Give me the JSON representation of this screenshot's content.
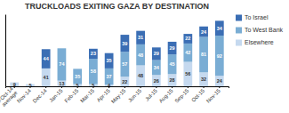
{
  "chart_data": {
    "type": "bar",
    "stacked": true,
    "title": "TRUCKLOADS EXITING GAZA BY DESTINATION",
    "categories": [
      "Jan-Oct-14\naverage",
      "Nov-14",
      "Dec-14",
      "Jan-15",
      "Feb-15",
      "Mar-15",
      "Apr-15",
      "May-15",
      "Jun-15",
      "Jul-15",
      "Aug-15",
      "Sep-15",
      "Oct-15",
      "Nov-15"
    ],
    "series": [
      {
        "name": "Elsewhere",
        "color": "#c5d9ef",
        "values": [
          9,
          5,
          41,
          13,
          5,
          5,
          4,
          22,
          48,
          26,
          28,
          56,
          32,
          24
        ]
      },
      {
        "name": "To West Bank",
        "color": "#7aadd4",
        "values": [
          0,
          0,
          0,
          74,
          35,
          58,
          37,
          57,
          48,
          34,
          45,
          42,
          81,
          92
        ]
      },
      {
        "name": "To Israel",
        "color": "#3b6eb4",
        "values": [
          0,
          0,
          44,
          0,
          0,
          23,
          35,
          39,
          31,
          29,
          29,
          22,
          24,
          34
        ]
      }
    ],
    "ylim": [
      0,
      165
    ],
    "yticks": [],
    "grid": false,
    "legend": "right",
    "data_labels": true,
    "tick_labels": "x"
  }
}
